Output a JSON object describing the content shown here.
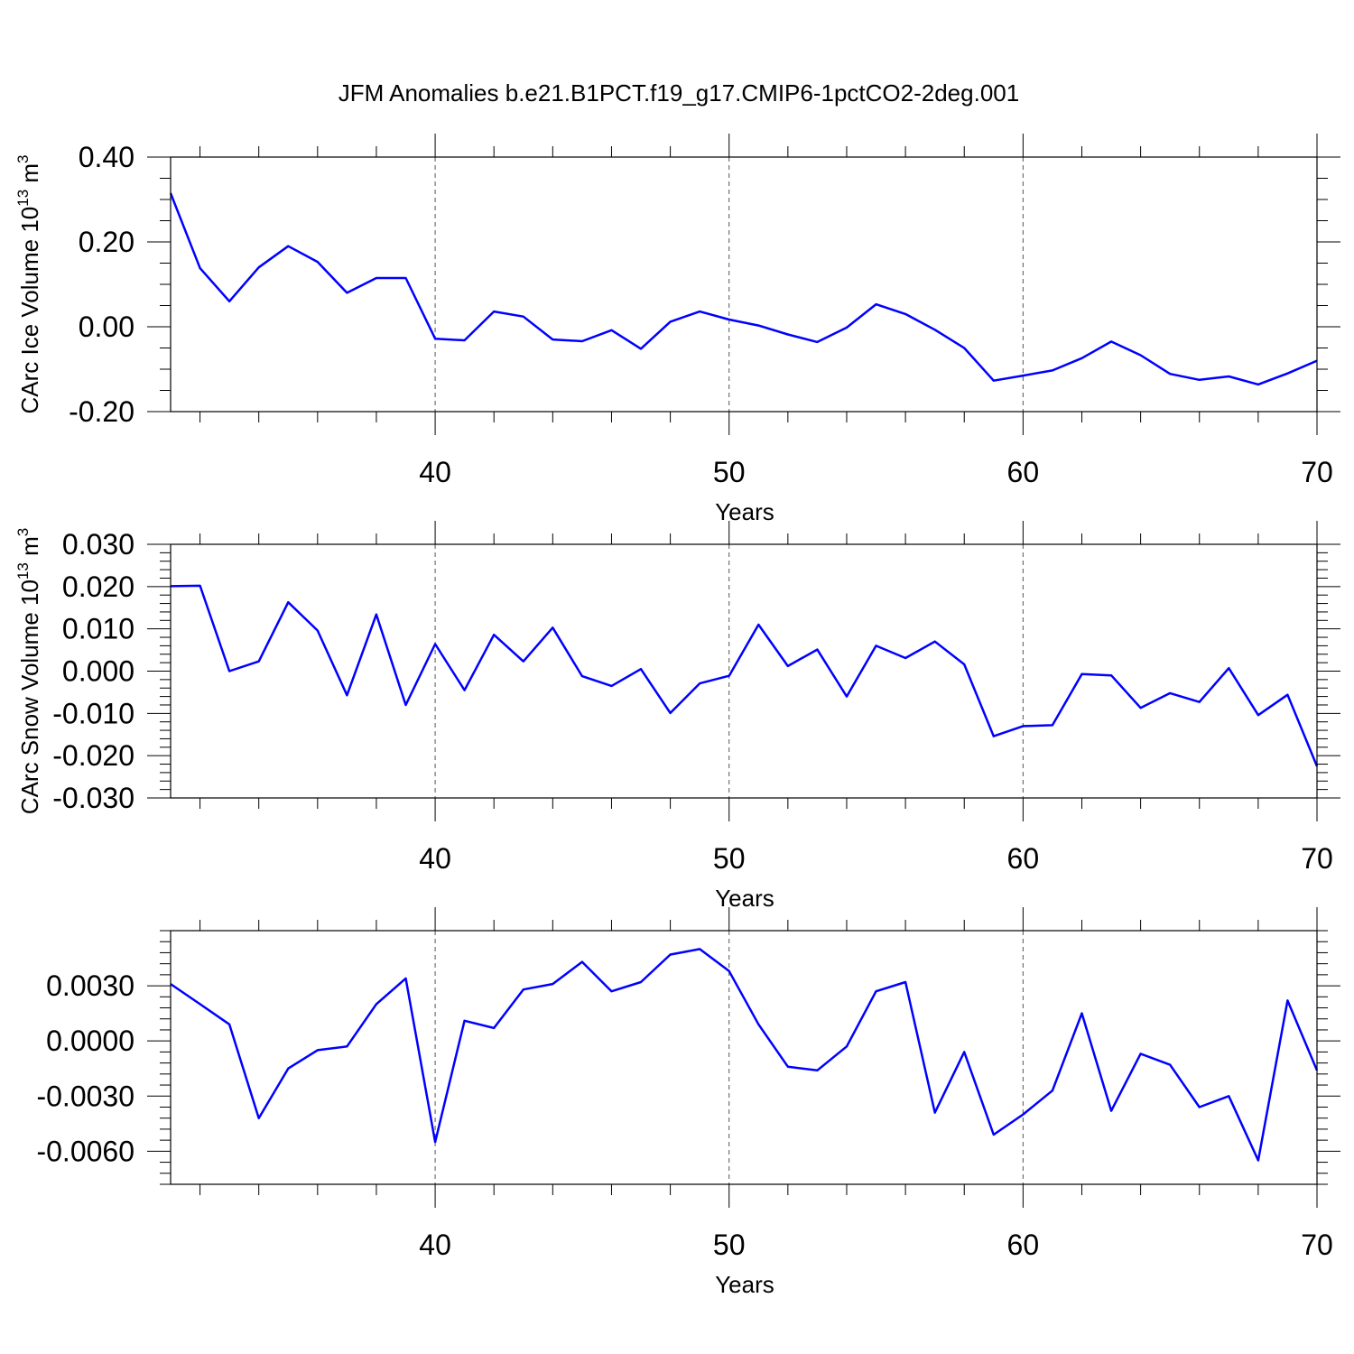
{
  "title": "JFM Anomalies b.e21.B1PCT.f19_g17.CMIP6-1pctCO2-2deg.001",
  "colors": {
    "line": "#0000ff",
    "axis": "#000000",
    "grid": "#555555"
  },
  "chart_data": [
    {
      "type": "line",
      "xlabel": "Years",
      "ylabel": "CArc Ice Volume 10^13 m^3",
      "ylabel_base": "CArc Ice Volume 10",
      "ylabel_exp": "13",
      "ylabel_unit": " m",
      "ylabel_unit_exp": "3",
      "xlim": [
        31,
        70
      ],
      "ylim": [
        -0.2,
        0.4
      ],
      "yticks": [
        -0.2,
        0.0,
        0.2,
        0.4
      ],
      "ytick_labels": [
        "-0.20",
        "0.00",
        "0.20",
        "0.40"
      ],
      "yminor_step": 0.05,
      "xticks": [
        40,
        50,
        60,
        70
      ],
      "xtick_labels": [
        "40",
        "50",
        "60",
        "70"
      ],
      "grid": "dashed vertical at major x ticks",
      "x": [
        31,
        32,
        33,
        34,
        35,
        36,
        37,
        38,
        39,
        40,
        41,
        42,
        43,
        44,
        45,
        46,
        47,
        48,
        49,
        50,
        51,
        52,
        53,
        54,
        55,
        56,
        57,
        58,
        59,
        60,
        61,
        62,
        63,
        64,
        65,
        66,
        67,
        68,
        69,
        70
      ],
      "values": [
        0.315,
        0.138,
        0.06,
        0.14,
        0.19,
        0.153,
        0.08,
        0.115,
        0.115,
        -0.028,
        -0.032,
        0.036,
        0.024,
        -0.03,
        -0.034,
        -0.008,
        -0.052,
        0.012,
        0.036,
        0.017,
        0.003,
        -0.018,
        -0.036,
        -0.002,
        0.053,
        0.03,
        -0.007,
        -0.05,
        -0.127,
        -0.115,
        -0.103,
        -0.074,
        -0.035,
        -0.067,
        -0.111,
        -0.125,
        -0.117,
        -0.136,
        -0.11,
        -0.08
      ]
    },
    {
      "type": "line",
      "xlabel": "Years",
      "ylabel": "CArc Snow Volume 10^13 m^3",
      "ylabel_base": "CArc Snow Volume 10",
      "ylabel_exp": "13",
      "ylabel_unit": " m",
      "ylabel_unit_exp": "3",
      "xlim": [
        31,
        70
      ],
      "ylim": [
        -0.03,
        0.03
      ],
      "yticks": [
        -0.03,
        -0.02,
        -0.01,
        0.0,
        0.01,
        0.02,
        0.03
      ],
      "ytick_labels": [
        "-0.030",
        "-0.020",
        "-0.010",
        "0.000",
        "0.010",
        "0.020",
        "0.030"
      ],
      "yminor_step": 0.002,
      "xticks": [
        40,
        50,
        60,
        70
      ],
      "xtick_labels": [
        "40",
        "50",
        "60",
        "70"
      ],
      "grid": "dashed vertical at major x ticks",
      "x": [
        31,
        32,
        33,
        34,
        35,
        36,
        37,
        38,
        39,
        40,
        41,
        42,
        43,
        44,
        45,
        46,
        47,
        48,
        49,
        50,
        51,
        52,
        53,
        54,
        55,
        56,
        57,
        58,
        59,
        60,
        61,
        62,
        63,
        64,
        65,
        66,
        67,
        68,
        69,
        70
      ],
      "values": [
        0.0201,
        0.0202,
        0.0,
        0.0023,
        0.0163,
        0.0096,
        -0.0057,
        0.0134,
        -0.008,
        0.0064,
        -0.0045,
        0.0086,
        0.0023,
        0.0103,
        -0.0012,
        -0.0035,
        0.0005,
        -0.0099,
        -0.0029,
        -0.0011,
        0.011,
        0.0012,
        0.0051,
        -0.006,
        0.006,
        0.0031,
        0.007,
        0.0016,
        -0.0154,
        -0.013,
        -0.0128,
        -0.0007,
        -0.001,
        -0.0087,
        -0.0052,
        -0.0073,
        0.0007,
        -0.0104,
        -0.0056,
        -0.0225
      ]
    },
    {
      "type": "line",
      "xlabel": "Years",
      "ylabel": "",
      "ylabel_base": "",
      "ylabel_exp": "",
      "ylabel_unit": "",
      "ylabel_unit_exp": "",
      "xlim": [
        31,
        70
      ],
      "ylim": [
        -0.0078,
        0.006
      ],
      "yticks": [
        -0.006,
        -0.003,
        0.0,
        0.003
      ],
      "ytick_labels": [
        "-0.0060",
        "-0.0030",
        "0.0000",
        "0.0030"
      ],
      "yminor_step": 0.0006,
      "xticks": [
        40,
        50,
        60,
        70
      ],
      "xtick_labels": [
        "40",
        "50",
        "60",
        "70"
      ],
      "grid": "dashed vertical at major x ticks",
      "x": [
        31,
        32,
        33,
        34,
        35,
        36,
        37,
        38,
        39,
        40,
        41,
        42,
        43,
        44,
        45,
        46,
        47,
        48,
        49,
        50,
        51,
        52,
        53,
        54,
        55,
        56,
        57,
        58,
        59,
        60,
        61,
        62,
        63,
        64,
        65,
        66,
        67,
        68,
        69,
        70
      ],
      "values": [
        0.0031,
        0.002,
        0.0009,
        -0.0042,
        -0.0015,
        -0.0005,
        -0.0003,
        0.002,
        0.0034,
        -0.0055,
        0.0011,
        0.0007,
        0.0028,
        0.0031,
        0.0043,
        0.0027,
        0.0032,
        0.0047,
        0.005,
        0.0038,
        0.0009,
        -0.0014,
        -0.0016,
        -0.0003,
        0.0027,
        0.0032,
        -0.0039,
        -0.0006,
        -0.0051,
        -0.004,
        -0.0027,
        0.0015,
        -0.0038,
        -0.0007,
        -0.0013,
        -0.0036,
        -0.003,
        -0.0065,
        0.0022,
        -0.0016
      ]
    }
  ]
}
